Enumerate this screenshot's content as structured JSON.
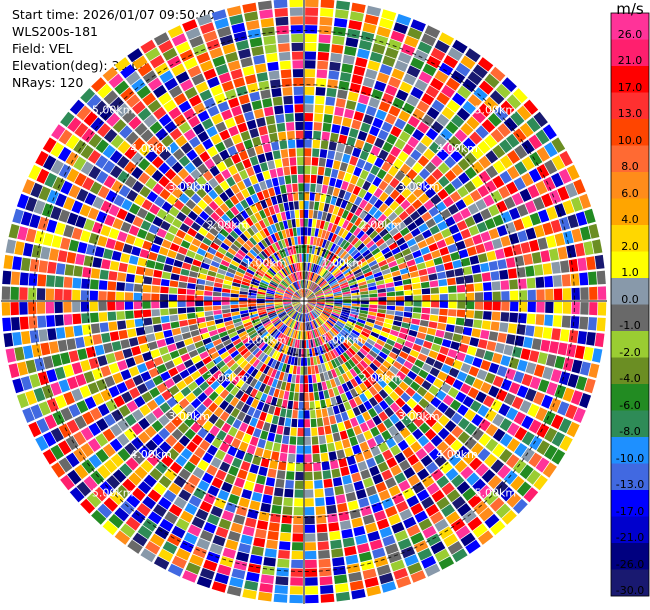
{
  "header": {
    "start_time": "Start time: 2026/01/07 09:50:40",
    "site": "WLS200s-181",
    "field": "Field: VEL",
    "elevation": "Elevation(deg): 35.00",
    "nrays": "NRays: 120"
  },
  "chart_data": {
    "type": "ppi-polar",
    "field": "VEL",
    "units": "m/s",
    "elevation_deg": 35.0,
    "n_rays": 120,
    "range_rings_km": [
      1.0,
      2.0,
      3.0,
      4.0,
      5.0
    ],
    "ring_labels": [
      "1.00km",
      "2.00km",
      "3.00km",
      "4.00km",
      "5.00km"
    ],
    "colorbar": {
      "title": "m/s",
      "ticks": [
        "26.0",
        "21.0",
        "17.0",
        "13.0",
        "10.0",
        "8.0",
        "6.0",
        "4.0",
        "2.0",
        "1.0",
        "0.0",
        "-1.0",
        "-2.0",
        "-4.0",
        "-6.0",
        "-8.0",
        "-10.0",
        "-13.0",
        "-17.0",
        "-21.0",
        "-26.0",
        "-30.0"
      ],
      "colors": [
        "#ff3399",
        "#ff1f6e",
        "#ff0000",
        "#ff3030",
        "#ff4500",
        "#ff6a33",
        "#ff8c1a",
        "#ffa500",
        "#ffd700",
        "#ffff00",
        "#8899aa",
        "#696969",
        "#9acd32",
        "#6b8e23",
        "#228b22",
        "#2e8b57",
        "#1e90ff",
        "#4169e1",
        "#0000ff",
        "#0000cd",
        "#000080",
        "#191970"
      ]
    }
  }
}
